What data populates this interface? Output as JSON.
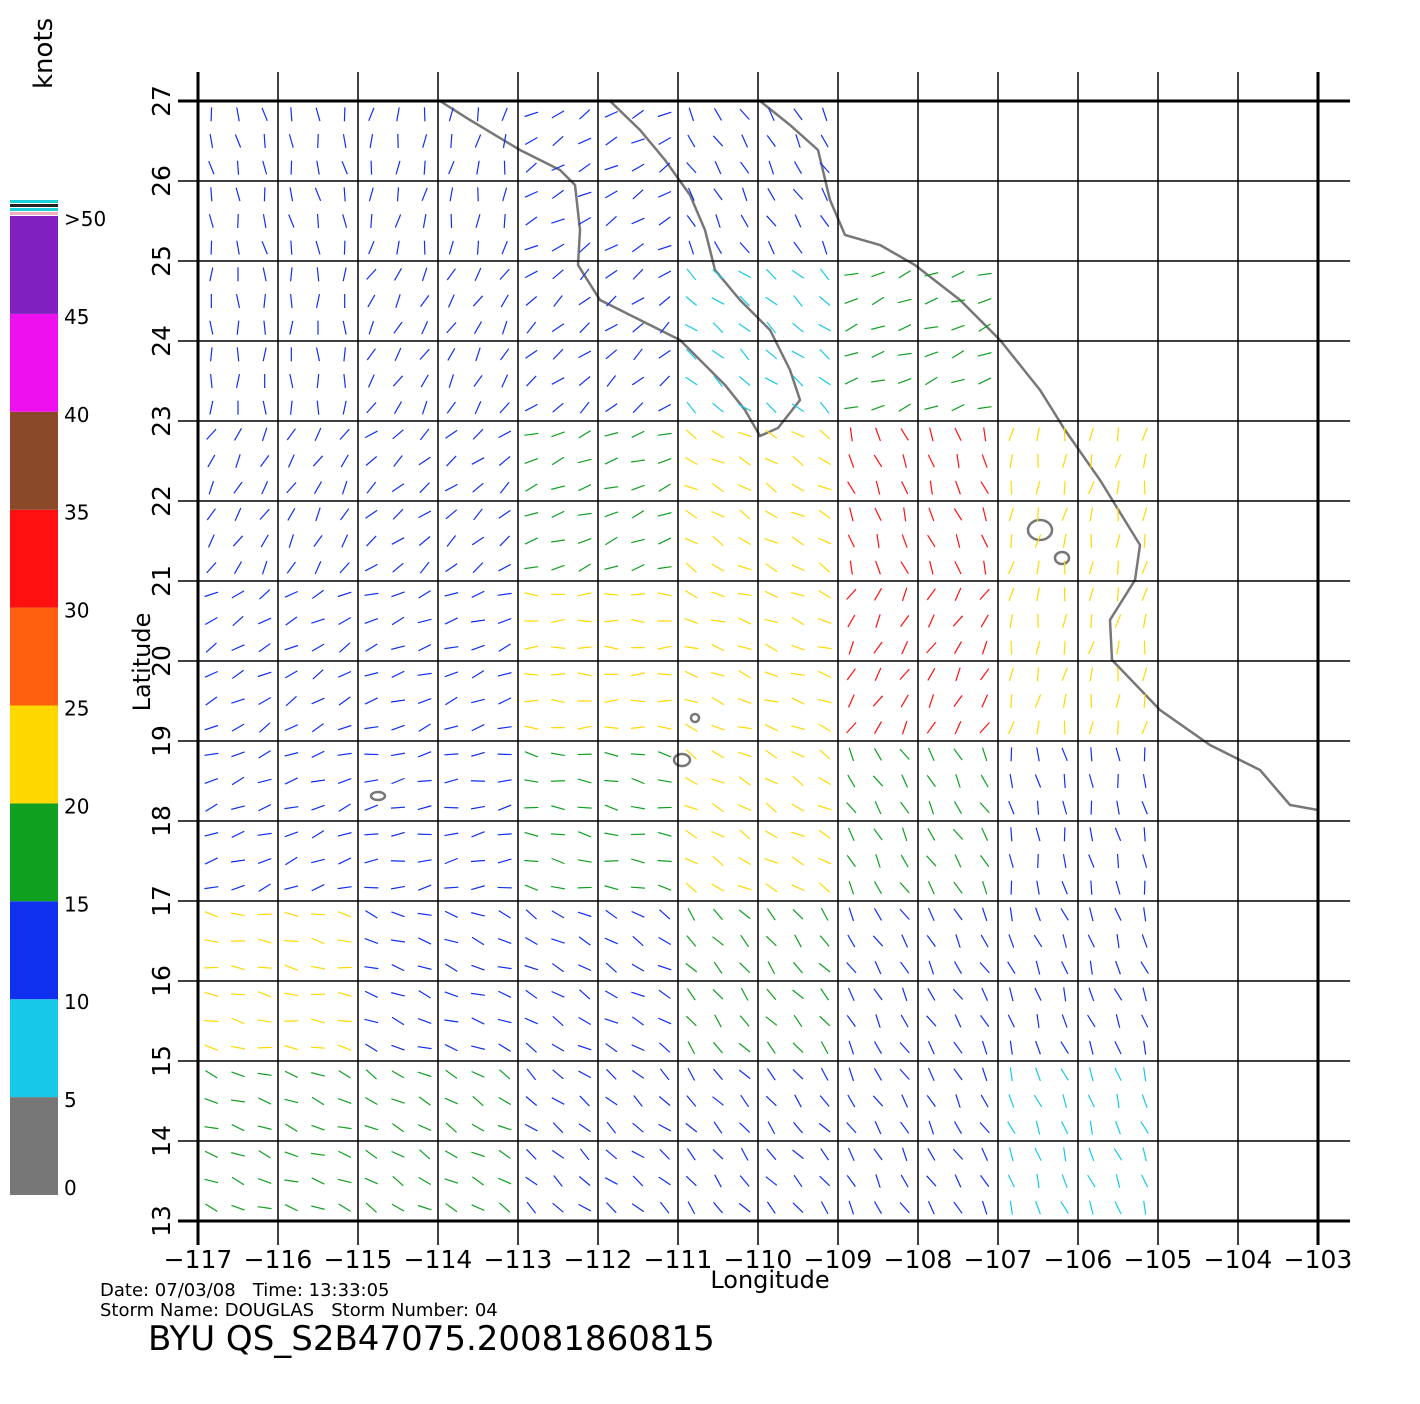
{
  "chart_data": {
    "type": "vector-map",
    "xlabel": "Longitude",
    "ylabel": "Latitude",
    "xlim": [
      -117,
      -103
    ],
    "ylim": [
      13,
      27
    ],
    "xticks": [
      {
        "value": -117,
        "label": "−117"
      },
      {
        "value": -116,
        "label": "−116"
      },
      {
        "value": -115,
        "label": "−115"
      },
      {
        "value": -114,
        "label": "−114"
      },
      {
        "value": -113,
        "label": "−113"
      },
      {
        "value": -112,
        "label": "−112"
      },
      {
        "value": -111,
        "label": "−111"
      },
      {
        "value": -110,
        "label": "−110"
      },
      {
        "value": -109,
        "label": "−109"
      },
      {
        "value": -108,
        "label": "−108"
      },
      {
        "value": -107,
        "label": "−107"
      },
      {
        "value": -106,
        "label": "−106"
      },
      {
        "value": -105,
        "label": "−105"
      },
      {
        "value": -104,
        "label": "−104"
      },
      {
        "value": -103,
        "label": "−103"
      }
    ],
    "yticks": [
      13,
      14,
      15,
      16,
      17,
      18,
      19,
      20,
      21,
      22,
      23,
      24,
      25,
      26,
      27
    ],
    "grid": true,
    "wind": {
      "lons": [
        -116,
        -114,
        -112,
        -110,
        -108,
        -106,
        -104
      ],
      "lats": [
        26,
        24,
        22,
        20,
        18,
        16,
        14
      ],
      "speed": [
        [
          12,
          12,
          10,
          12,
          null,
          null,
          null
        ],
        [
          12,
          14,
          13,
          8,
          16,
          null,
          null
        ],
        [
          12,
          13,
          15,
          20,
          30,
          22,
          null
        ],
        [
          12,
          14,
          20,
          24,
          32,
          24,
          null
        ],
        [
          14,
          14,
          16,
          22,
          18,
          14,
          null
        ],
        [
          20,
          14,
          14,
          15,
          12,
          12,
          null
        ],
        [
          16,
          15,
          12,
          12,
          11,
          8,
          null
        ]
      ],
      "direction": [
        [
          100,
          80,
          30,
          120,
          null,
          null,
          null
        ],
        [
          90,
          60,
          40,
          140,
          20,
          null,
          null
        ],
        [
          60,
          40,
          20,
          150,
          110,
          80,
          null
        ],
        [
          30,
          20,
          0,
          160,
          60,
          80,
          null
        ],
        [
          20,
          10,
          170,
          150,
          120,
          100,
          null
        ],
        [
          170,
          160,
          150,
          130,
          120,
          110,
          null
        ],
        [
          160,
          150,
          140,
          130,
          120,
          110,
          null
        ]
      ]
    },
    "colorbar": {
      "label": "knots",
      "ticks": [
        0,
        5,
        10,
        15,
        20,
        25,
        30,
        35,
        40,
        45,
        {
          "value": 50,
          "label": ">50"
        }
      ],
      "colors": [
        "#777777",
        "#18c8e8",
        "#1030f0",
        "#10a020",
        "#ffd800",
        "#ff6010",
        "#ff1010",
        "#8a4a2a",
        "#ee10ee",
        "#8020c0"
      ]
    }
  },
  "footer": {
    "date_time": "Date: 07/03/08   Time: 13:33:05",
    "storm": "Storm Name: DOUGLAS   Storm Number: 04",
    "id": "BYU QS_S2B47075.20081860815"
  }
}
